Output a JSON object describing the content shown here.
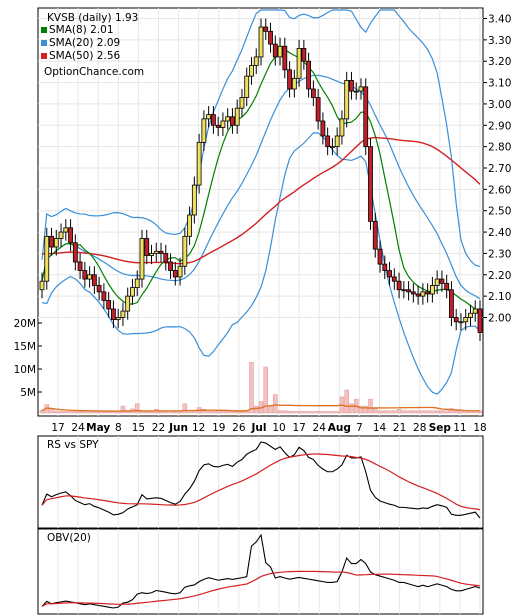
{
  "chart_data": [
    {
      "type": "candlestick",
      "legend": {
        "ticker": "KVSB (daily) 1.93",
        "items": [
          {
            "label": "SMA(8) 2.01",
            "color": "#008000"
          },
          {
            "label": "SMA(20) 2.09",
            "color": "#3a8fd9"
          },
          {
            "label": "SMA(50) 2.56",
            "color": "#d42020"
          }
        ],
        "source": "OptionChance.com"
      },
      "y_ticks": [
        "3.40",
        "3.30",
        "3.20",
        "3.10",
        "3.00",
        "2.90",
        "2.80",
        "2.70",
        "2.60",
        "2.50",
        "2.40",
        "2.30",
        "2.20",
        "2.10",
        "2.00"
      ],
      "ylim": [
        1.89,
        3.41
      ],
      "volume_ticks": [
        "20M",
        "15M",
        "10M",
        "5M"
      ],
      "x_tick_labels": [
        "17",
        "24",
        "May",
        "8",
        "15",
        "22",
        "Jun",
        "12",
        "19",
        "26",
        "Jul",
        "10",
        "17",
        "24",
        "Aug",
        "7",
        "14",
        "21",
        "28",
        "Sep",
        "11",
        "18"
      ],
      "close": [
        2.17,
        2.38,
        2.33,
        2.37,
        2.4,
        2.42,
        2.35,
        2.26,
        2.22,
        2.18,
        2.2,
        2.15,
        2.12,
        2.08,
        2.04,
        1.99,
        2.0,
        2.03,
        2.1,
        2.14,
        2.18,
        2.37,
        2.29,
        2.3,
        2.31,
        2.3,
        2.26,
        2.22,
        2.19,
        2.24,
        2.38,
        2.48,
        2.62,
        2.82,
        2.93,
        2.95,
        2.9,
        2.89,
        2.92,
        2.94,
        2.9,
        2.98,
        3.03,
        3.13,
        3.18,
        3.22,
        3.36,
        3.34,
        3.28,
        3.22,
        3.27,
        3.16,
        3.07,
        3.12,
        3.26,
        3.2,
        3.07,
        3.03,
        2.92,
        2.85,
        2.8,
        2.8,
        2.85,
        2.93,
        3.11,
        3.06,
        3.06,
        3.08,
        2.8,
        2.45,
        2.32,
        2.25,
        2.22,
        2.19,
        2.17,
        2.13,
        2.13,
        2.12,
        2.11,
        2.1,
        2.12,
        2.11,
        2.15,
        2.18,
        2.16,
        2.13,
        2.0,
        1.98,
        1.98,
        2.0,
        2.02,
        2.04,
        1.93
      ],
      "volume_m": [
        0.6,
        1.8,
        0.9,
        0.4,
        0.3,
        0.3,
        0.3,
        0.3,
        0.4,
        0.3,
        0.3,
        0.3,
        0.3,
        0.3,
        0.3,
        0.3,
        0.3,
        1.5,
        0.3,
        0.9,
        2.0,
        0.5,
        0.3,
        0.3,
        0.8,
        0.3,
        0.3,
        0.4,
        0.2,
        0.4,
        2.0,
        0.5,
        0.3,
        1.2,
        0.8,
        0.6,
        0.4,
        0.5,
        0.3,
        0.3,
        0.3,
        0.3,
        0.3,
        0.4,
        11.0,
        1.5,
        2.5,
        10.0,
        1.5,
        4.0,
        0.5,
        0.5,
        0.4,
        0.3,
        0.3,
        0.3,
        0.3,
        0.3,
        0.3,
        0.3,
        0.3,
        0.3,
        0.3,
        3.5,
        5.0,
        2.0,
        3.0,
        1.5,
        1.5,
        3.0,
        1.0,
        0.5,
        0.5,
        0.5,
        0.5,
        0.8,
        0.5,
        0.5,
        0.5,
        0.5,
        0.5,
        0.5,
        0.5,
        0.5,
        0.5,
        0.5,
        1.0,
        0.5,
        0.5,
        0.5,
        0.5,
        0.5,
        0.5
      ]
    },
    {
      "type": "line",
      "title": "RS vs SPY",
      "series_colors": [
        "#000000",
        "#d42020"
      ]
    },
    {
      "type": "line",
      "title": "OBV(20)",
      "series_colors": [
        "#000000",
        "#d42020"
      ]
    }
  ]
}
